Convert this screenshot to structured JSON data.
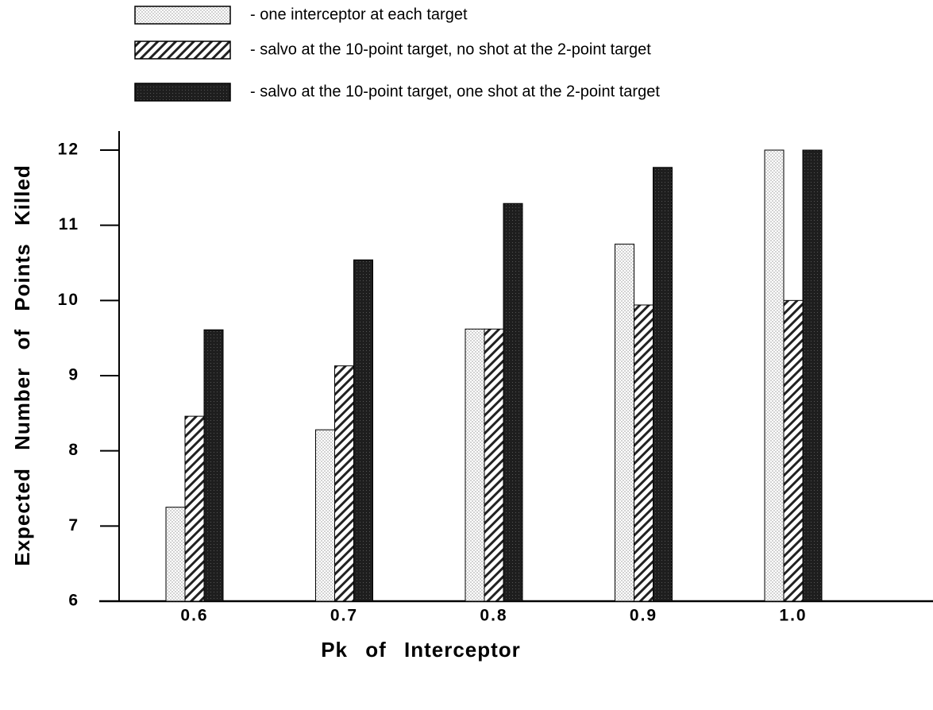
{
  "chart_data": {
    "type": "bar",
    "x_label": "Pk of Interceptor",
    "y_label": "Expected Number of Points Killed",
    "categories": [
      "0.6",
      "0.7",
      "0.8",
      "0.9",
      "1.0"
    ],
    "series": [
      {
        "name": "- one interceptor at each target",
        "color": "#d2d2d2",
        "pattern": "dots",
        "values": [
          7.25,
          8.28,
          9.62,
          10.75,
          12
        ]
      },
      {
        "name": "- salvo at the 10-point target, no shot at the 2-point target",
        "color": "#222222",
        "pattern": "hatch",
        "values": [
          8.46,
          9.13,
          9.62,
          9.94,
          10
        ]
      },
      {
        "name": "- salvo at the 10-point target, one shot at the 2-point target",
        "color": "#1e1e1e",
        "pattern": "solid",
        "values": [
          9.61,
          10.54,
          11.29,
          11.77,
          12
        ]
      }
    ],
    "ylim": [
      6,
      12
    ],
    "yticks": [
      6,
      7,
      8,
      9,
      10,
      11,
      12
    ]
  }
}
